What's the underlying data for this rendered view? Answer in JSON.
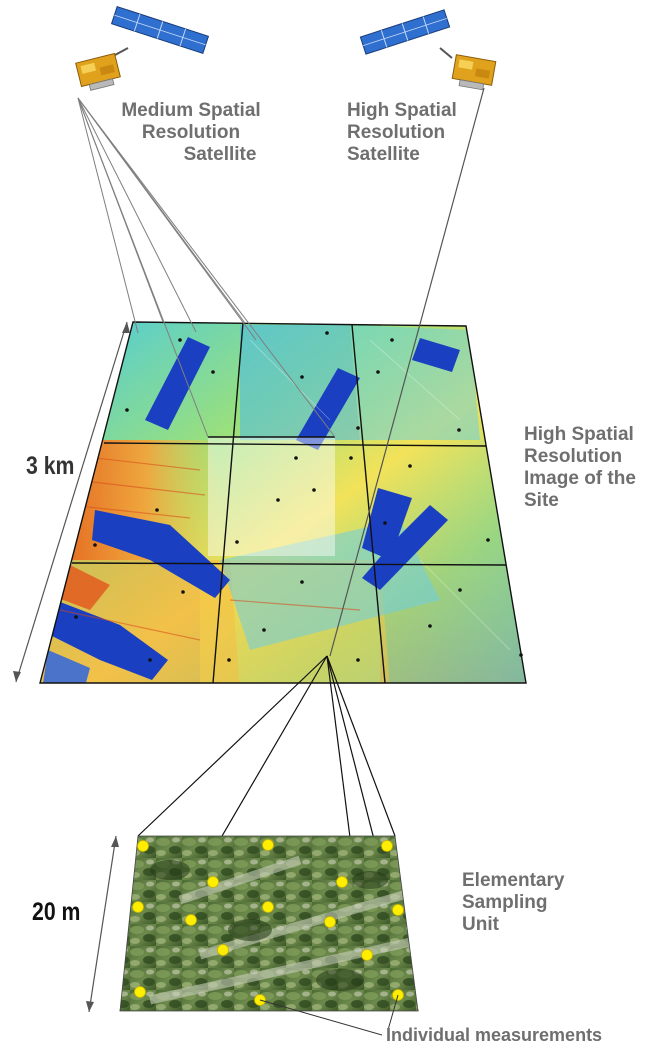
{
  "satellites": {
    "medium": {
      "line1": "Medium Spatial",
      "line2": "Resolution",
      "line3": "Satellite"
    },
    "high": {
      "line1": "High Spatial",
      "line2": "Resolution",
      "line3": "Satellite"
    }
  },
  "site_image": {
    "line1": "High Spatial",
    "line2": "Resolution",
    "line3": "Image of the",
    "line4": "Site",
    "scale_label": "3 km"
  },
  "esu": {
    "line1": "Elementary",
    "line2": "Sampling",
    "line3": "Unit",
    "scale_label": "20 m"
  },
  "measurements_label": "Individual measurements",
  "colors": {
    "label": "#6f6f6f",
    "satellite_body": "#e0a21c",
    "solar_panel": "#2f6fd0",
    "measurement_point": "#ffee00",
    "canopy": "#3f5a2c"
  }
}
